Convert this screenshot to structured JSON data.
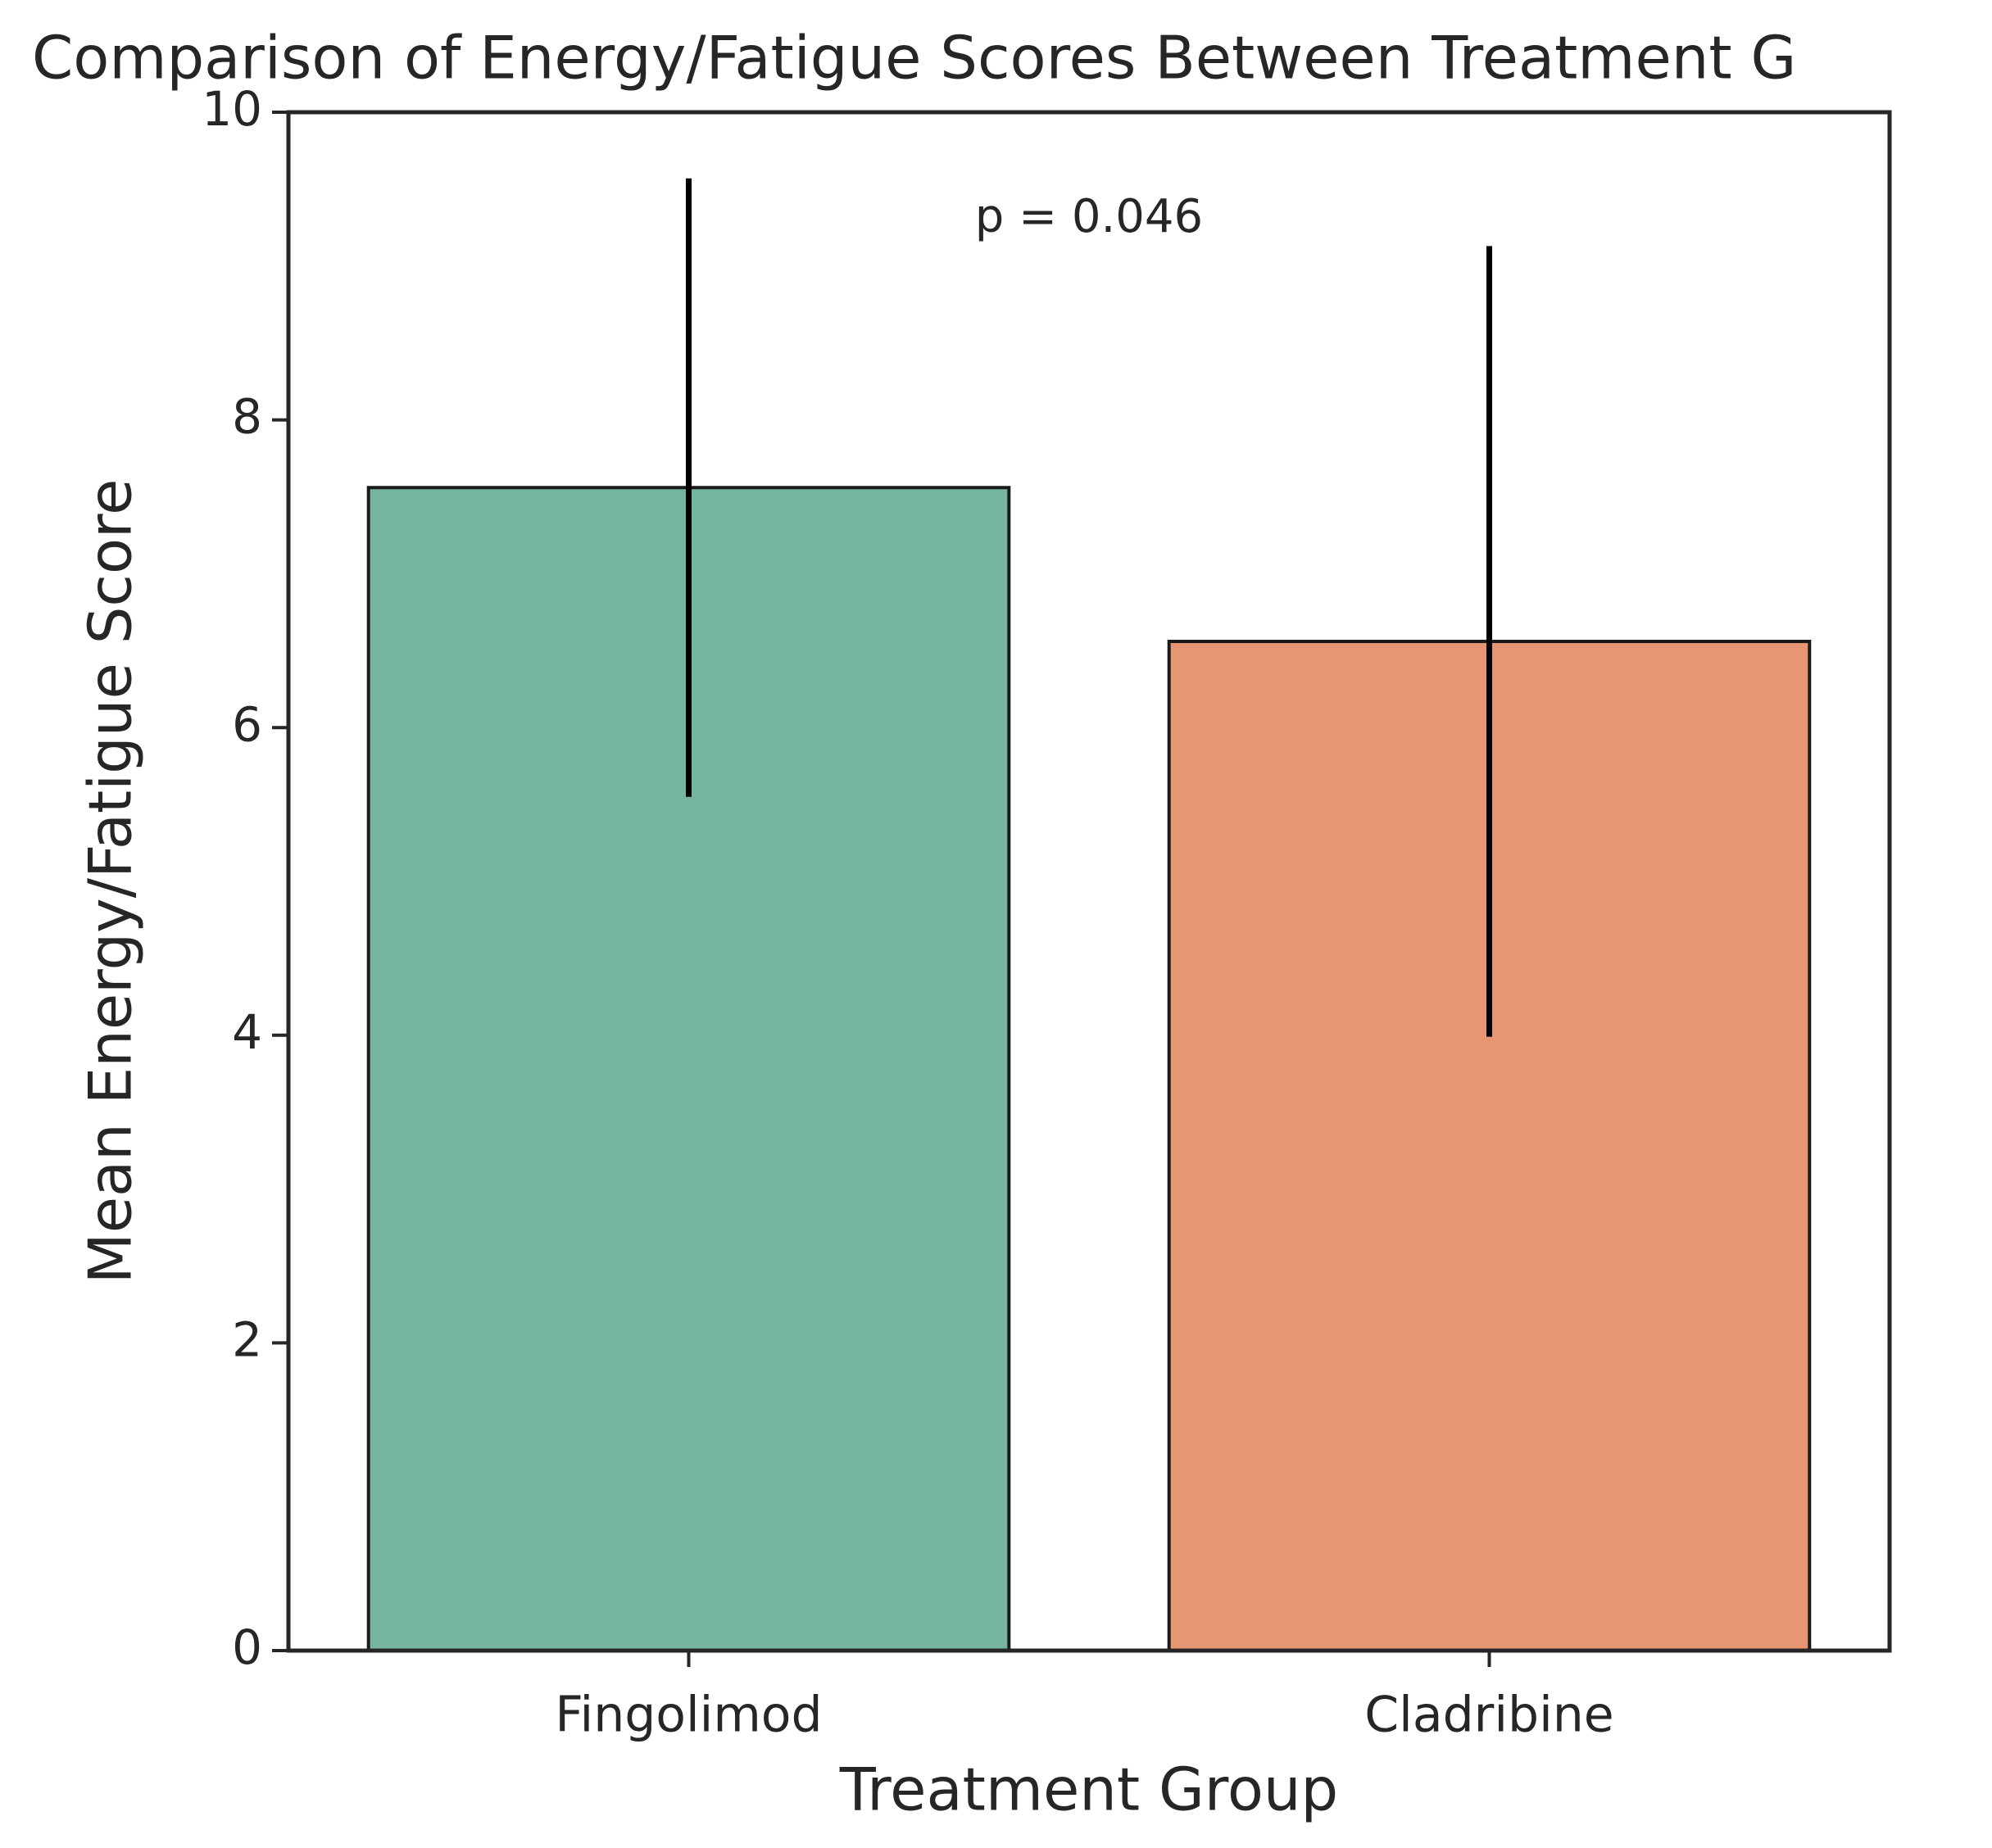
{
  "chart_data": {
    "type": "bar",
    "title": "Comparison of Energy/Fatigue Scores Between Treatment G",
    "x_label": "Treatment Group",
    "y_label": "Mean Energy/Fatigue Score",
    "annotation": "p = 0.046",
    "categories": [
      "Fingolimod",
      "Cladribine"
    ],
    "values": [
      7.56,
      6.56
    ],
    "errors": [
      2.01,
      2.57
    ],
    "colors": [
      "#76b5a1",
      "#e79674"
    ],
    "ylim": [
      0,
      10
    ],
    "yticks": [
      0,
      2,
      4,
      6,
      8,
      10
    ],
    "grid": false
  }
}
